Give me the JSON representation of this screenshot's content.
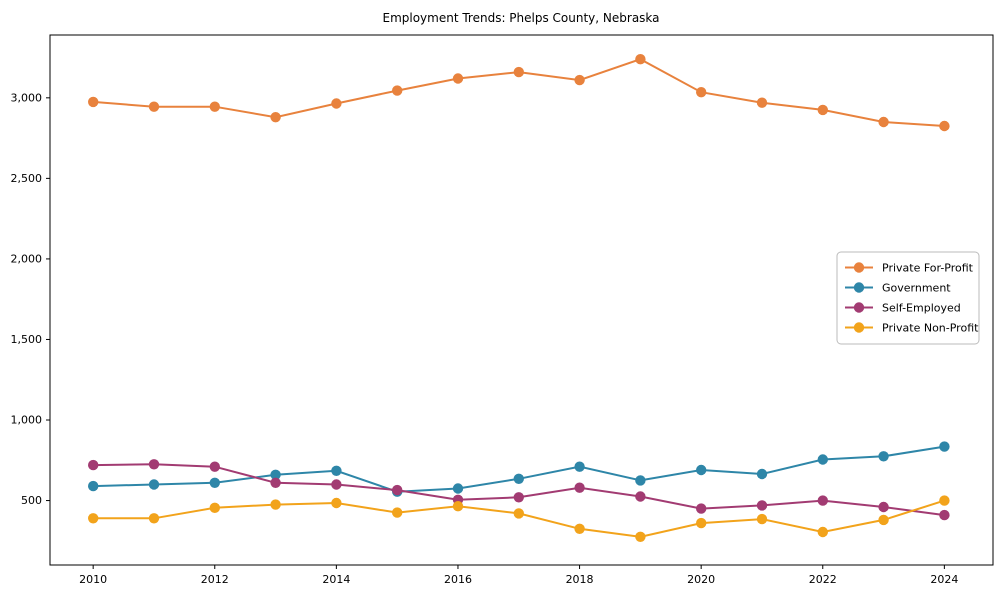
{
  "chart_data": {
    "type": "line",
    "title": "Employment Trends: Phelps County, Nebraska",
    "xlabel": "",
    "ylabel": "",
    "x": [
      2010,
      2011,
      2012,
      2013,
      2014,
      2015,
      2016,
      2017,
      2018,
      2019,
      2020,
      2021,
      2022,
      2023,
      2024
    ],
    "series": [
      {
        "name": "Private For-Profit",
        "color": "#E8823D",
        "values": [
          2975,
          2945,
          2945,
          2880,
          2965,
          3045,
          3120,
          3160,
          3110,
          3240,
          3035,
          2970,
          2925,
          2850,
          2825
        ]
      },
      {
        "name": "Government",
        "color": "#2E86A8",
        "values": [
          590,
          600,
          610,
          660,
          685,
          555,
          575,
          635,
          710,
          625,
          690,
          665,
          755,
          775,
          835
        ]
      },
      {
        "name": "Self-Employed",
        "color": "#A23B72",
        "values": [
          720,
          725,
          710,
          610,
          600,
          565,
          505,
          520,
          580,
          525,
          450,
          470,
          500,
          460,
          410
        ]
      },
      {
        "name": "Private Non-Profit",
        "color": "#F2A31B",
        "values": [
          390,
          390,
          455,
          475,
          485,
          425,
          465,
          420,
          325,
          275,
          360,
          385,
          305,
          380,
          500
        ]
      }
    ],
    "xticks": [
      2010,
      2012,
      2014,
      2016,
      2018,
      2020,
      2022,
      2024
    ],
    "xtick_labels": [
      "2010",
      "2012",
      "2014",
      "2016",
      "2018",
      "2020",
      "2022",
      "2024"
    ],
    "yticks": [
      500,
      1000,
      1500,
      2000,
      2500,
      3000
    ],
    "ytick_labels": [
      "500",
      "1,000",
      "1,500",
      "2,000",
      "2,500",
      "3,000"
    ],
    "xlim": [
      2009.29,
      2024.8
    ],
    "ylim": [
      100,
      3390
    ],
    "grid": false,
    "legend_position": "center-right",
    "marker": "circle",
    "spine_color": "#000000"
  }
}
